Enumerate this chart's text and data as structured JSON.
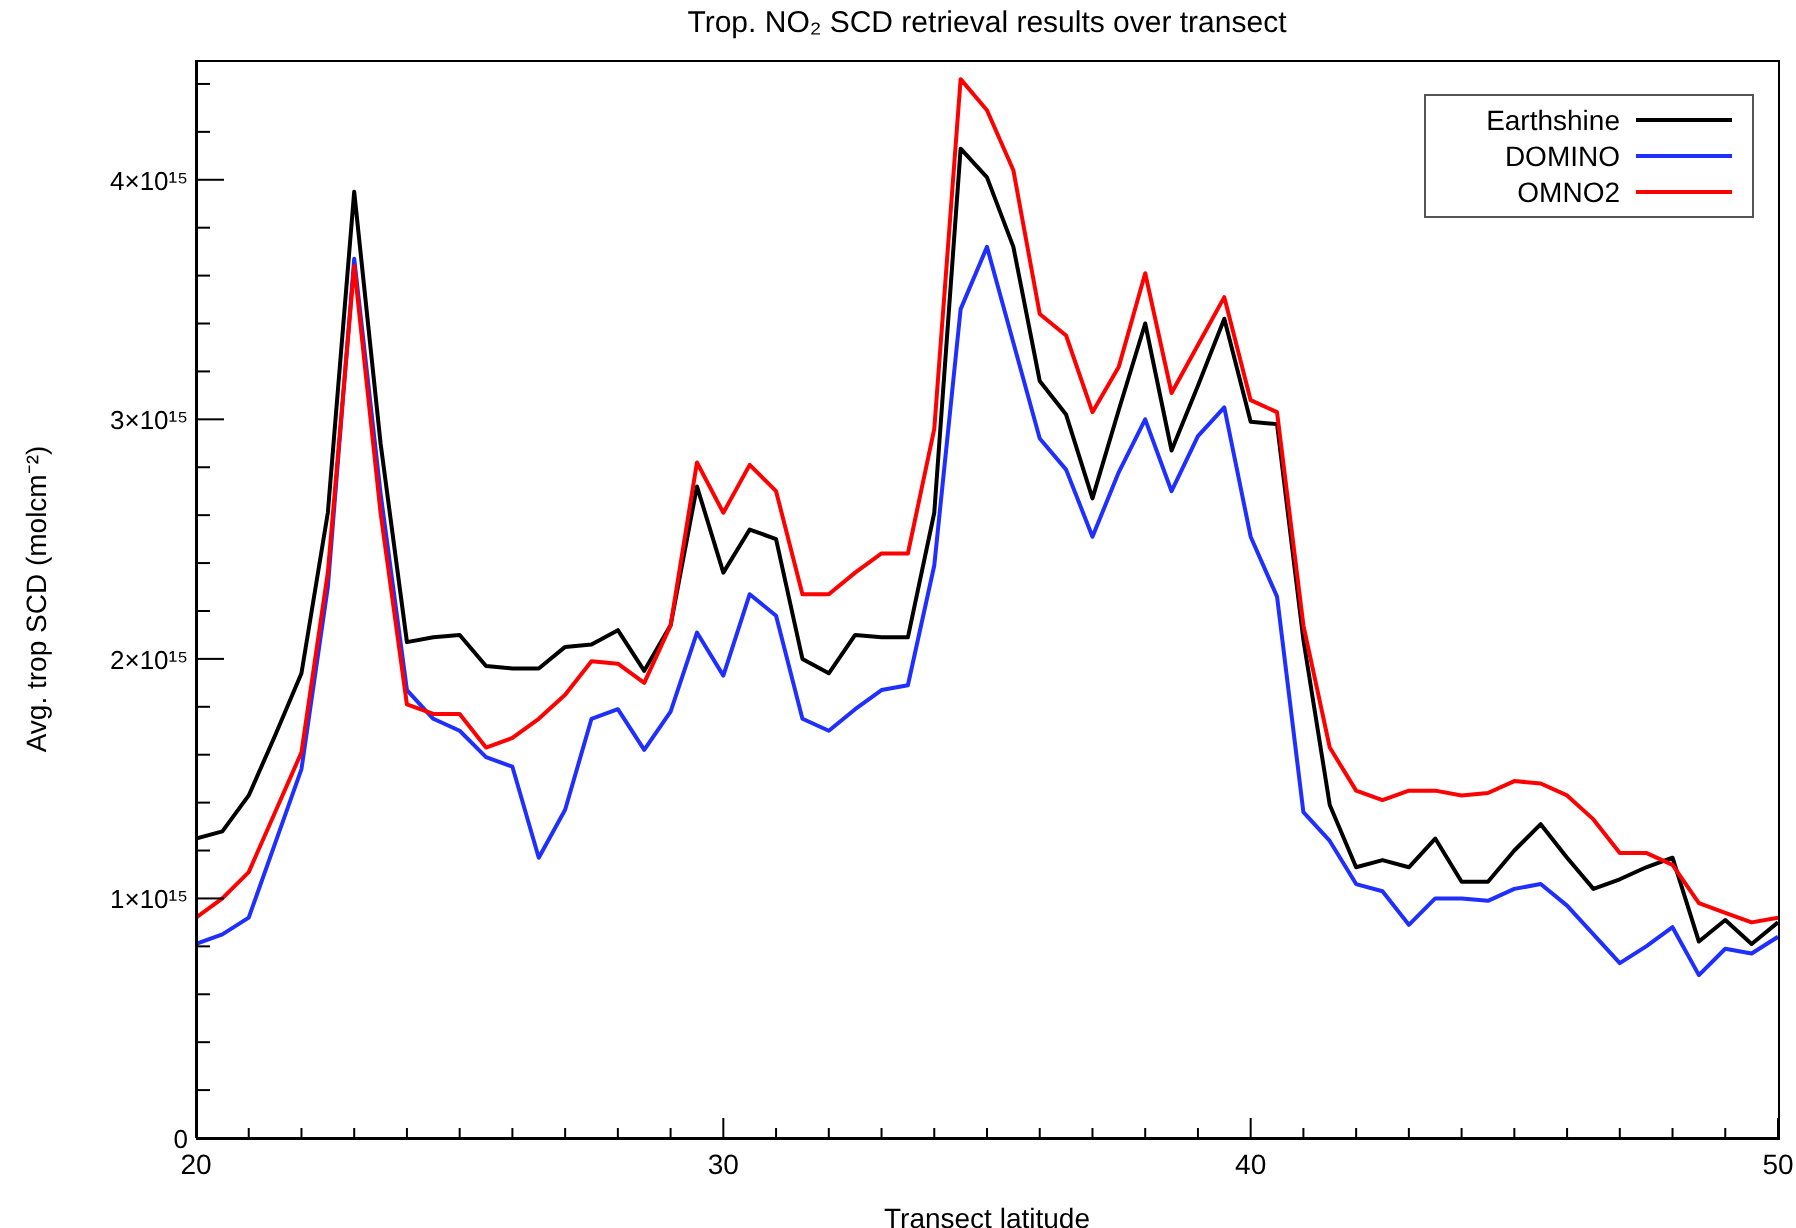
{
  "chart_data": {
    "type": "line",
    "title": "Trop. NO₂ SCD retrieval results over transect",
    "xlabel": "Transect latitude",
    "ylabel": "Avg. trop SCD (molcm⁻²)",
    "x": [
      20,
      20.5,
      21,
      21.5,
      22,
      22.5,
      23,
      23.5,
      24,
      24.5,
      25,
      25.5,
      26,
      26.5,
      27,
      27.5,
      28,
      28.5,
      29,
      29.5,
      30,
      30.5,
      31,
      31.5,
      32,
      32.5,
      33,
      33.5,
      34,
      34.5,
      35,
      35.5,
      36,
      36.5,
      37,
      37.5,
      38,
      38.5,
      39,
      39.5,
      40,
      40.5,
      41,
      41.5,
      42,
      42.5,
      43,
      43.5,
      44,
      44.5,
      45,
      45.5,
      46,
      46.5,
      47,
      47.5,
      48,
      48.5,
      49,
      49.5,
      50
    ],
    "series": [
      {
        "name": "Earthshine",
        "color": "#000000",
        "values": [
          1250000000000000.0,
          1280000000000000.0,
          1430000000000000.0,
          1680000000000000.0,
          1940000000000000.0,
          2610000000000000.0,
          3950000000000000.0,
          2900000000000000.0,
          2070000000000000.0,
          2090000000000000.0,
          2100000000000000.0,
          1970000000000000.0,
          1960000000000000.0,
          1960000000000000.0,
          2050000000000000.0,
          2060000000000000.0,
          2120000000000000.0,
          1950000000000000.0,
          2140000000000000.0,
          2720000000000000.0,
          2360000000000000.0,
          2540000000000000.0,
          2500000000000000.0,
          2000000000000000.0,
          1940000000000000.0,
          2100000000000000.0,
          2090000000000000.0,
          2090000000000000.0,
          2610000000000000.0,
          4130000000000000.0,
          4010000000000000.0,
          3720000000000000.0,
          3160000000000000.0,
          3020000000000000.0,
          2670000000000000.0,
          3040000000000000.0,
          3400000000000000.0,
          2870000000000000.0,
          3140000000000000.0,
          3420000000000000.0,
          2990000000000000.0,
          2980000000000000.0,
          2080000000000000.0,
          1390000000000000.0,
          1130000000000000.0,
          1160000000000000.0,
          1130000000000000.0,
          1250000000000000.0,
          1070000000000000.0,
          1070000000000000.0,
          1200000000000000.0,
          1310000000000000.0,
          1170000000000000.0,
          1040000000000000.0,
          1080000000000000.0,
          1130000000000000.0,
          1170000000000000.0,
          820000000000000.0,
          910000000000000.0,
          810000000000000.0,
          900000000000000.0
        ]
      },
      {
        "name": "DOMINO",
        "color": "#1f2fff",
        "values": [
          810000000000000.0,
          850000000000000.0,
          920000000000000.0,
          1230000000000000.0,
          1540000000000000.0,
          2300000000000000.0,
          3670000000000000.0,
          2690000000000000.0,
          1870000000000000.0,
          1750000000000000.0,
          1700000000000000.0,
          1590000000000000.0,
          1550000000000000.0,
          1170000000000000.0,
          1370000000000000.0,
          1750000000000000.0,
          1790000000000000.0,
          1620000000000000.0,
          1780000000000000.0,
          2110000000000000.0,
          1930000000000000.0,
          2270000000000000.0,
          2180000000000000.0,
          1750000000000000.0,
          1700000000000000.0,
          1790000000000000.0,
          1870000000000000.0,
          1890000000000000.0,
          2390000000000000.0,
          3460000000000000.0,
          3720000000000000.0,
          3320000000000000.0,
          2920000000000000.0,
          2790000000000000.0,
          2510000000000000.0,
          2780000000000000.0,
          3000000000000000.0,
          2700000000000000.0,
          2930000000000000.0,
          3050000000000000.0,
          2510000000000000.0,
          2260000000000000.0,
          1360000000000000.0,
          1240000000000000.0,
          1060000000000000.0,
          1030000000000000.0,
          890000000000000.0,
          1000000000000000.0,
          1000000000000000.0,
          990000000000000.0,
          1040000000000000.0,
          1060000000000000.0,
          970000000000000.0,
          850000000000000.0,
          730000000000000.0,
          800000000000000.0,
          880000000000000.0,
          680000000000000.0,
          790000000000000.0,
          770000000000000.0,
          840000000000000.0
        ]
      },
      {
        "name": "OMNO2",
        "color": "#ff0000",
        "values": [
          920000000000000.0,
          1000000000000000.0,
          1110000000000000.0,
          1360000000000000.0,
          1610000000000000.0,
          2360000000000000.0,
          3640000000000000.0,
          2610000000000000.0,
          1810000000000000.0,
          1770000000000000.0,
          1770000000000000.0,
          1630000000000000.0,
          1670000000000000.0,
          1750000000000000.0,
          1850000000000000.0,
          1990000000000000.0,
          1980000000000000.0,
          1900000000000000.0,
          2140000000000000.0,
          2820000000000000.0,
          2610000000000000.0,
          2810000000000000.0,
          2700000000000000.0,
          2270000000000000.0,
          2270000000000000.0,
          2360000000000000.0,
          2440000000000000.0,
          2440000000000000.0,
          2960000000000000.0,
          4420000000000000.0,
          4290000000000000.0,
          4040000000000000.0,
          3440000000000000.0,
          3350000000000000.0,
          3030000000000000.0,
          3220000000000000.0,
          3610000000000000.0,
          3110000000000000.0,
          3310000000000000.0,
          3510000000000000.0,
          3080000000000000.0,
          3030000000000000.0,
          2140000000000000.0,
          1630000000000000.0,
          1450000000000000.0,
          1410000000000000.0,
          1450000000000000.0,
          1450000000000000.0,
          1430000000000000.0,
          1440000000000000.0,
          1490000000000000.0,
          1480000000000000.0,
          1430000000000000.0,
          1330000000000000.0,
          1190000000000000.0,
          1190000000000000.0,
          1140000000000000.0,
          980000000000000.0,
          940000000000000.0,
          900000000000000.0,
          920000000000000.0
        ]
      }
    ],
    "xlim": [
      20,
      50
    ],
    "xticks": [
      20,
      {
        "value": 21,
        "label": null
      },
      {
        "value": 22,
        "label": null
      },
      {
        "value": 23,
        "label": null
      },
      {
        "value": 24,
        "label": null
      },
      {
        "value": 25,
        "label": null
      },
      {
        "value": 26,
        "label": null
      },
      {
        "value": 27,
        "label": null
      },
      {
        "value": 28,
        "label": null
      },
      {
        "value": 29,
        "label": null
      },
      30,
      {
        "value": 31,
        "label": null
      },
      {
        "value": 32,
        "label": null
      },
      {
        "value": 33,
        "label": null
      },
      {
        "value": 34,
        "label": null
      },
      {
        "value": 35,
        "label": null
      },
      {
        "value": 36,
        "label": null
      },
      {
        "value": 37,
        "label": null
      },
      {
        "value": 38,
        "label": null
      },
      {
        "value": 39,
        "label": null
      },
      40,
      {
        "value": 41,
        "label": null
      },
      {
        "value": 42,
        "label": null
      },
      {
        "value": 43,
        "label": null
      },
      {
        "value": 44,
        "label": null
      },
      {
        "value": 45,
        "label": null
      },
      {
        "value": 46,
        "label": null
      },
      {
        "value": 47,
        "label": null
      },
      {
        "value": 48,
        "label": null
      },
      {
        "value": 49,
        "label": null
      },
      50
    ],
    "ylim": [
      0,
      4500000000000000.0
    ],
    "yticks": [
      0,
      {
        "value": 200000000000000.0,
        "label": null
      },
      {
        "value": 400000000000000.0,
        "label": null
      },
      {
        "value": 600000000000000.0,
        "label": null
      },
      {
        "value": 800000000000000.0,
        "label": null
      },
      {
        "value": 1000000000000000.0,
        "label": "1×10¹⁵"
      },
      {
        "value": 1200000000000000.0,
        "label": null
      },
      {
        "value": 1400000000000000.0,
        "label": null
      },
      {
        "value": 1600000000000000.0,
        "label": null
      },
      {
        "value": 1800000000000000.0,
        "label": null
      },
      {
        "value": 2000000000000000.0,
        "label": "2×10¹⁵"
      },
      {
        "value": 2200000000000000.0,
        "label": null
      },
      {
        "value": 2400000000000000.0,
        "label": null
      },
      {
        "value": 2600000000000000.0,
        "label": null
      },
      {
        "value": 2800000000000000.0,
        "label": null
      },
      {
        "value": 3000000000000000.0,
        "label": "3×10¹⁵"
      },
      {
        "value": 3200000000000000.0,
        "label": null
      },
      {
        "value": 3400000000000000.0,
        "label": null
      },
      {
        "value": 3600000000000000.0,
        "label": null
      },
      {
        "value": 3800000000000000.0,
        "label": null
      },
      {
        "value": 4000000000000000.0,
        "label": "4×10¹⁵"
      },
      {
        "value": 4200000000000000.0,
        "label": null
      },
      {
        "value": 4400000000000000.0,
        "label": null
      }
    ],
    "legend": "top right"
  }
}
